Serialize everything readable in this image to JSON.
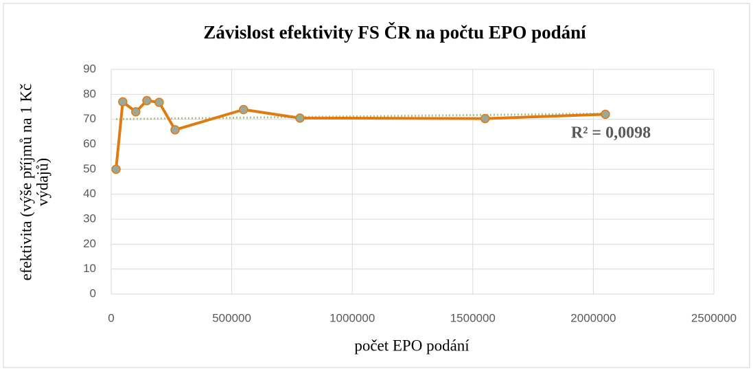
{
  "chart_data": {
    "type": "scatter",
    "title": "Závislost efektivity FS ČR na počtu EPO podání",
    "xlabel": "počet EPO podání",
    "ylabel": [
      "efektivita (výše příjmů na 1 Kč",
      "výdajů)"
    ],
    "x": [
      20000,
      48000,
      102000,
      148000,
      199000,
      265000,
      549000,
      783000,
      1551000,
      2050000
    ],
    "series": [
      {
        "color": "#e07b10",
        "marker_color": "#9aa89a",
        "values": [
          50,
          77,
          73,
          77.5,
          76.8,
          65.8,
          73.9,
          70.5,
          70.3,
          72
        ]
      }
    ],
    "trendline": {
      "type": "linear",
      "color": "#a9c48a",
      "dashed": true
    },
    "annotation": "R² = 0,0098",
    "xlim": [
      0,
      2500000
    ],
    "xticks": [
      0,
      500000,
      1000000,
      1500000,
      2000000,
      2500000
    ],
    "ylim": [
      0,
      90
    ],
    "yticks": [
      0,
      10,
      20,
      30,
      40,
      50,
      60,
      70,
      80,
      90
    ],
    "grid": true
  }
}
